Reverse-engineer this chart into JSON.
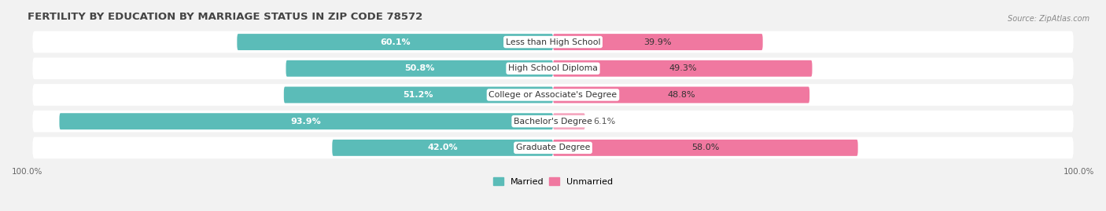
{
  "title": "FERTILITY BY EDUCATION BY MARRIAGE STATUS IN ZIP CODE 78572",
  "source": "Source: ZipAtlas.com",
  "categories": [
    "Less than High School",
    "High School Diploma",
    "College or Associate's Degree",
    "Bachelor's Degree",
    "Graduate Degree"
  ],
  "married": [
    60.1,
    50.8,
    51.2,
    93.9,
    42.0
  ],
  "unmarried": [
    39.9,
    49.3,
    48.8,
    6.1,
    58.0
  ],
  "married_color": "#5bbcb8",
  "unmarried_color_large": "#f078a0",
  "unmarried_color_small": "#f5a8c0",
  "bar_height": 0.62,
  "background_color": "#f2f2f2",
  "row_bg_color": "#ffffff",
  "title_fontsize": 9.5,
  "label_fontsize": 8.0,
  "tick_fontsize": 7.5,
  "legend_fontsize": 8.0,
  "xlim_left": -100,
  "xlim_right": 100,
  "married_label_threshold": 15,
  "unmarried_label_threshold": 15
}
